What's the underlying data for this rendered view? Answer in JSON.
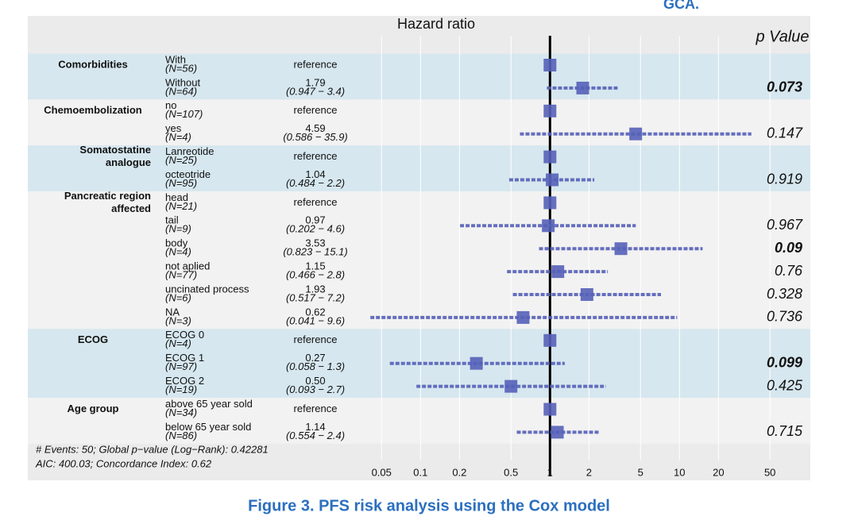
{
  "header_fragment": "GCA.",
  "caption": "Figure 3. PFS risk analysis using the Cox model",
  "chart_data": {
    "type": "forest",
    "title": "Hazard ratio",
    "p_header": "p Value",
    "log_x": true,
    "xlim": [
      0.035,
      70
    ],
    "xticks": [
      0.05,
      0.1,
      0.2,
      0.5,
      1,
      2,
      5,
      10,
      20,
      50
    ],
    "reference_line": 1,
    "color": "#5560b8",
    "grid": true,
    "footnotes": [
      "# Events: 50; Global p−value (Log−Rank): 0.42281",
      "AIC: 400.03; Concordance Index: 0.62"
    ],
    "groups": [
      {
        "label": [
          "Comorbidities"
        ],
        "band": "#d6e7ef",
        "rows": [
          {
            "level": "With",
            "n": "(N=56)",
            "hr": 1,
            "hr_label": "reference"
          },
          {
            "level": "Without",
            "n": "(N=64)",
            "hr": 1.79,
            "ci_low": 0.947,
            "ci_high": 3.4,
            "ci_label": "(0.947 − 3.4)",
            "p": 0.073,
            "bold": true
          }
        ]
      },
      {
        "label": [
          "Chemoembolization"
        ],
        "band": "#f2f2f2",
        "rows": [
          {
            "level": "no",
            "n": "(N=107)",
            "hr": 1,
            "hr_label": "reference"
          },
          {
            "level": "yes",
            "n": "(N=4)",
            "hr": 4.59,
            "ci_low": 0.586,
            "ci_high": 35.9,
            "ci_label": "(0.586 − 35.9)",
            "p": 0.147
          }
        ]
      },
      {
        "label": [
          "Somatostatine",
          "analogue"
        ],
        "band": "#d6e7ef",
        "rows": [
          {
            "level": "Lanreotide",
            "n": "(N=25)",
            "hr": 1,
            "hr_label": "reference"
          },
          {
            "level": "octeotride",
            "n": "(N=95)",
            "hr": 1.04,
            "ci_low": 0.484,
            "ci_high": 2.2,
            "ci_label": "(0.484 − 2.2)",
            "p": 0.919
          }
        ]
      },
      {
        "label": [
          "Pancreatic region",
          "affected"
        ],
        "band": "#f2f2f2",
        "rows": [
          {
            "level": "head",
            "n": "(N=21)",
            "hr": 1,
            "hr_label": "reference"
          },
          {
            "level": "tail",
            "n": "(N=9)",
            "hr": 0.97,
            "ci_low": 0.202,
            "ci_high": 4.6,
            "ci_label": "(0.202 − 4.6)",
            "p": 0.967
          },
          {
            "level": "body",
            "n": "(N=4)",
            "hr": 3.53,
            "ci_low": 0.823,
            "ci_high": 15.1,
            "ci_label": "(0.823 − 15.1)",
            "p": 0.09,
            "bold": true
          },
          {
            "level": "not aplied",
            "n": "(N=77)",
            "hr": 1.15,
            "ci_low": 0.466,
            "ci_high": 2.8,
            "ci_label": "(0.466 − 2.8)",
            "p": 0.76
          },
          {
            "level": "uncinated process",
            "n": "(N=6)",
            "hr": 1.93,
            "ci_low": 0.517,
            "ci_high": 7.2,
            "ci_label": "(0.517 − 7.2)",
            "p": 0.328
          },
          {
            "level": "NA",
            "n": "(N=3)",
            "hr": 0.62,
            "ci_low": 0.041,
            "ci_high": 9.6,
            "ci_label": "(0.041 − 9.6)",
            "p": 0.736
          }
        ]
      },
      {
        "label": [
          "ECOG"
        ],
        "band": "#d6e7ef",
        "rows": [
          {
            "level": "ECOG 0",
            "n": "(N=4)",
            "hr": 1,
            "hr_label": "reference"
          },
          {
            "level": "ECOG 1",
            "n": "(N=97)",
            "hr": 0.27,
            "ci_low": 0.058,
            "ci_high": 1.3,
            "ci_label": "(0.058 − 1.3)",
            "p": 0.099,
            "bold": true
          },
          {
            "level": "ECOG 2",
            "n": "(N=19)",
            "hr": 0.5,
            "hr_label": "0.50",
            "ci_low": 0.093,
            "ci_high": 2.7,
            "ci_label": "(0.093 − 2.7)",
            "p": 0.425
          }
        ]
      },
      {
        "label": [
          "Age group"
        ],
        "band": "#f2f2f2",
        "rows": [
          {
            "level": "above 65 year sold",
            "n": "(N=34)",
            "hr": 1,
            "hr_label": "reference"
          },
          {
            "level": "below 65 year sold",
            "n": "(N=86)",
            "hr": 1.14,
            "ci_low": 0.554,
            "ci_high": 2.4,
            "ci_label": "(0.554 − 2.4)",
            "p": 0.715
          }
        ]
      }
    ]
  }
}
